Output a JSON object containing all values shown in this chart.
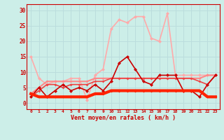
{
  "xlabel": "Vent moyen/en rafales ( km/h )",
  "bg_color": "#cceee8",
  "grid_color": "#bbdddd",
  "x_ticks": [
    0,
    1,
    2,
    3,
    4,
    5,
    6,
    7,
    8,
    9,
    10,
    11,
    12,
    13,
    14,
    15,
    16,
    17,
    18,
    19,
    20,
    21,
    22,
    23
  ],
  "ylim": [
    -2,
    32
  ],
  "xlim": [
    -0.5,
    23.5
  ],
  "yticks": [
    0,
    5,
    10,
    15,
    20,
    25,
    30
  ],
  "series": [
    {
      "data": [
        [
          0,
          2
        ],
        [
          1,
          5
        ],
        [
          2,
          2
        ],
        [
          3,
          4
        ],
        [
          4,
          6
        ],
        [
          5,
          4
        ],
        [
          6,
          5
        ],
        [
          7,
          4
        ],
        [
          8,
          6
        ],
        [
          9,
          4
        ],
        [
          10,
          7
        ],
        [
          11,
          13
        ],
        [
          12,
          15
        ],
        [
          13,
          11
        ],
        [
          14,
          7
        ],
        [
          15,
          6
        ],
        [
          16,
          9
        ],
        [
          17,
          9
        ],
        [
          18,
          9
        ],
        [
          19,
          4
        ],
        [
          20,
          4
        ],
        [
          21,
          2
        ],
        [
          22,
          6
        ],
        [
          23,
          9
        ]
      ],
      "color": "#cc0000",
      "lw": 1.2,
      "marker": "D",
      "ms": 2.5,
      "zorder": 5
    },
    {
      "data": [
        [
          0,
          3
        ],
        [
          1,
          2
        ],
        [
          2,
          2
        ],
        [
          3,
          2
        ],
        [
          4,
          2
        ],
        [
          5,
          2
        ],
        [
          6,
          2
        ],
        [
          7,
          2
        ],
        [
          8,
          3
        ],
        [
          9,
          3
        ],
        [
          10,
          4
        ],
        [
          11,
          4
        ],
        [
          12,
          4
        ],
        [
          13,
          4
        ],
        [
          14,
          4
        ],
        [
          15,
          4
        ],
        [
          16,
          4
        ],
        [
          17,
          4
        ],
        [
          18,
          4
        ],
        [
          19,
          4
        ],
        [
          20,
          4
        ],
        [
          21,
          4
        ],
        [
          22,
          2
        ],
        [
          23,
          2
        ]
      ],
      "color": "#ff2200",
      "lw": 3.0,
      "marker": "D",
      "ms": 2,
      "zorder": 6
    },
    {
      "data": [
        [
          0,
          15
        ],
        [
          1,
          8
        ],
        [
          2,
          6
        ],
        [
          3,
          7
        ],
        [
          4,
          7
        ],
        [
          5,
          8
        ],
        [
          6,
          8
        ],
        [
          7,
          1
        ],
        [
          8,
          9
        ],
        [
          9,
          11
        ],
        [
          10,
          24
        ],
        [
          11,
          27
        ],
        [
          12,
          26
        ],
        [
          13,
          28
        ],
        [
          14,
          28
        ],
        [
          15,
          21
        ],
        [
          16,
          20
        ],
        [
          17,
          29
        ],
        [
          18,
          9
        ],
        [
          19,
          9
        ],
        [
          20,
          9
        ],
        [
          21,
          9
        ],
        [
          22,
          9
        ],
        [
          23,
          9
        ]
      ],
      "color": "#ffaaaa",
      "lw": 1.2,
      "marker": "D",
      "ms": 2.5,
      "zorder": 3
    },
    {
      "data": [
        [
          0,
          3
        ],
        [
          1,
          5
        ],
        [
          2,
          7
        ],
        [
          3,
          7
        ],
        [
          4,
          7
        ],
        [
          5,
          7
        ],
        [
          6,
          7
        ],
        [
          7,
          7
        ],
        [
          8,
          8
        ],
        [
          9,
          8
        ],
        [
          10,
          8
        ],
        [
          11,
          8
        ],
        [
          12,
          8
        ],
        [
          13,
          8
        ],
        [
          14,
          8
        ],
        [
          15,
          8
        ],
        [
          16,
          8
        ],
        [
          17,
          8
        ],
        [
          18,
          8
        ],
        [
          19,
          8
        ],
        [
          20,
          8
        ],
        [
          21,
          8
        ],
        [
          22,
          9
        ],
        [
          23,
          9
        ]
      ],
      "color": "#ff8888",
      "lw": 1.5,
      "marker": "D",
      "ms": 2,
      "zorder": 4
    },
    {
      "data": [
        [
          0,
          2
        ],
        [
          1,
          4
        ],
        [
          2,
          6
        ],
        [
          3,
          6
        ],
        [
          4,
          5
        ],
        [
          5,
          6
        ],
        [
          6,
          6
        ],
        [
          7,
          6
        ],
        [
          8,
          7
        ],
        [
          9,
          7
        ],
        [
          10,
          8
        ],
        [
          11,
          8
        ],
        [
          12,
          8
        ],
        [
          13,
          8
        ],
        [
          14,
          8
        ],
        [
          15,
          8
        ],
        [
          16,
          8
        ],
        [
          17,
          8
        ],
        [
          18,
          8
        ],
        [
          19,
          8
        ],
        [
          20,
          8
        ],
        [
          21,
          7
        ],
        [
          22,
          6
        ],
        [
          23,
          9
        ]
      ],
      "color": "#ee4444",
      "lw": 1.2,
      "marker": "D",
      "ms": 2,
      "zorder": 4
    }
  ]
}
